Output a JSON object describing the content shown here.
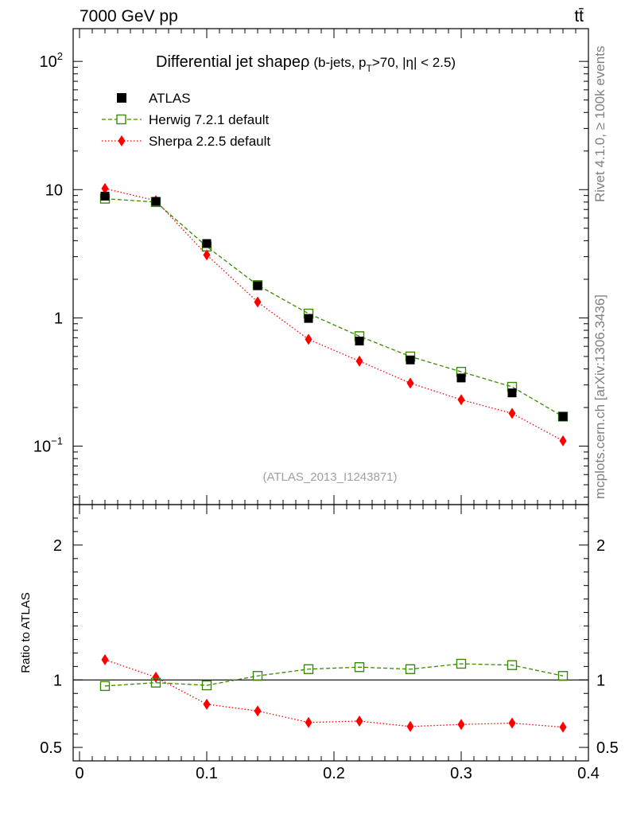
{
  "header": {
    "energy": "7000 GeV pp",
    "process": "tt̄"
  },
  "side_labels": {
    "rivet": "Rivet 4.1.0, ≥ 100k events",
    "mcplots": "mcplots.cern.ch [arXiv:1306.3436]"
  },
  "chart_data": [
    {
      "type": "scatter",
      "panel": "main",
      "title_main": "Differential jet shape",
      "title_symbol": "ρ",
      "title_cut_open": "(b-jets, p",
      "title_cut_sub": "T",
      "title_cut_close": ">70, |η| < 2.5)",
      "yscale": "log",
      "ylim": [
        0.035,
        180
      ],
      "xlim": [
        -0.005,
        0.4
      ],
      "ytick_labels": [
        {
          "value": 0.1,
          "base": "10",
          "exp": "−1"
        },
        {
          "value": 1,
          "base": "1",
          "exp": ""
        },
        {
          "value": 10,
          "base": "10",
          "exp": ""
        },
        {
          "value": 100,
          "base": "10",
          "exp": "2"
        }
      ],
      "watermark": "(ATLAS_2013_I1243871)",
      "legend_position": "top-left",
      "x": [
        0.02,
        0.06,
        0.1,
        0.14,
        0.18,
        0.22,
        0.26,
        0.3,
        0.34,
        0.38
      ],
      "series": [
        {
          "name": "ATLAS",
          "color": "#000000",
          "marker": "filled-square",
          "line": "none",
          "values": [
            8.9,
            8.1,
            3.8,
            1.78,
            0.99,
            0.66,
            0.47,
            0.34,
            0.26,
            0.17
          ]
        },
        {
          "name": "Herwig 7.2.1 default",
          "color": "#3a8a00",
          "marker": "open-square",
          "line": "dashed",
          "values": [
            8.5,
            8.0,
            3.6,
            1.8,
            1.08,
            0.72,
            0.5,
            0.38,
            0.29,
            0.17
          ]
        },
        {
          "name": "Sherpa 2.2.5 default",
          "color": "#ff0000",
          "marker": "diamond",
          "line": "dotted",
          "values": [
            10.2,
            8.2,
            3.1,
            1.33,
            0.68,
            0.46,
            0.31,
            0.23,
            0.18,
            0.11
          ]
        }
      ]
    },
    {
      "type": "scatter",
      "panel": "ratio",
      "ylabel": "Ratio to ATLAS",
      "ylim": [
        0.4,
        2.3
      ],
      "xlim": [
        -0.005,
        0.4
      ],
      "reference": 1,
      "ytick_labels": [
        {
          "value": 0.5,
          "label": "0.5"
        },
        {
          "value": 1,
          "label": "1"
        },
        {
          "value": 2,
          "label": "2"
        }
      ],
      "xtick_labels": [
        {
          "value": 0,
          "label": "0"
        },
        {
          "value": 0.1,
          "label": "0.1"
        },
        {
          "value": 0.2,
          "label": "0.2"
        },
        {
          "value": 0.3,
          "label": "0.3"
        },
        {
          "value": 0.4,
          "label": "0.4"
        }
      ],
      "x": [
        0.02,
        0.06,
        0.1,
        0.14,
        0.18,
        0.22,
        0.26,
        0.3,
        0.34,
        0.38
      ],
      "series": [
        {
          "name": "Herwig 7.2.1 default",
          "color": "#3a8a00",
          "marker": "open-square",
          "line": "dashed",
          "values": [
            0.955,
            0.98,
            0.96,
            1.03,
            1.08,
            1.095,
            1.08,
            1.12,
            1.11,
            1.03
          ]
        },
        {
          "name": "Sherpa 2.2.5 default",
          "color": "#ff0000",
          "marker": "diamond",
          "line": "dotted",
          "values": [
            1.15,
            1.02,
            0.82,
            0.77,
            0.685,
            0.695,
            0.655,
            0.67,
            0.68,
            0.65
          ]
        }
      ]
    }
  ]
}
